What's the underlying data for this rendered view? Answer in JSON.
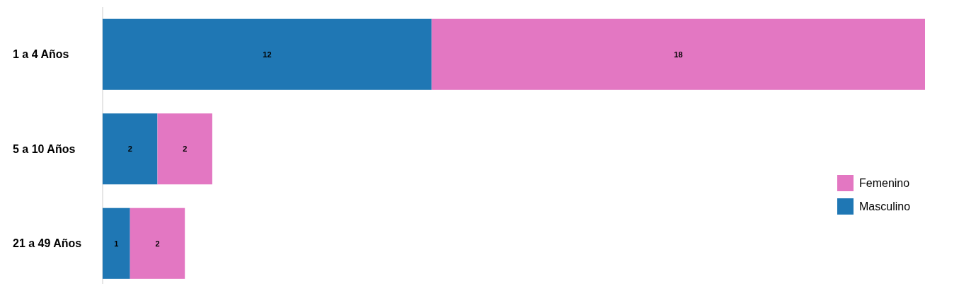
{
  "chart_data": {
    "type": "bar",
    "orientation": "horizontal",
    "stacked": true,
    "data_labels": true,
    "legend": "right",
    "categories": [
      "1 a 4 Años",
      "5 a 10 Años",
      "21 a 49 Años"
    ],
    "series": [
      {
        "name": "Masculino",
        "color": "#1f77b4",
        "values": [
          12,
          2,
          1
        ]
      },
      {
        "name": "Femenino",
        "color": "#e377c2",
        "values": [
          18,
          2,
          2
        ]
      }
    ]
  }
}
